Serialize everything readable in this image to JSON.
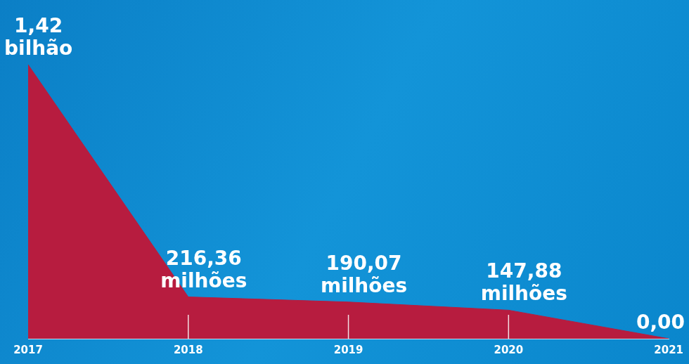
{
  "chart_data": {
    "type": "area",
    "categories": [
      "2017",
      "2018",
      "2019",
      "2020",
      "2021"
    ],
    "values": [
      1420,
      216.36,
      190.07,
      147.88,
      0
    ],
    "value_labels": [
      "1,42 bilhão",
      "216,36 milhões",
      "190,07 milhões",
      "147,88 milhões",
      "0,00"
    ],
    "color": "#b71c3f",
    "ylim": [
      0,
      1420
    ],
    "grid": false,
    "data_labels": true,
    "tick_labels": "x"
  }
}
